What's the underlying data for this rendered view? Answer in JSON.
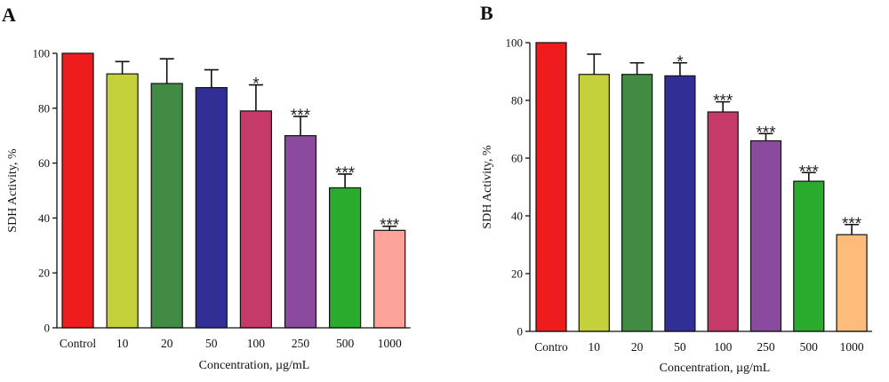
{
  "chart_data": [
    {
      "type": "bar",
      "panel": "A",
      "categories": [
        "Control",
        "10",
        "20",
        "50",
        "100",
        "250",
        "500",
        "1000"
      ],
      "values": [
        100,
        92.5,
        89,
        87.5,
        79,
        70,
        51,
        35.5
      ],
      "errors": [
        0,
        4.5,
        9,
        6.5,
        9.5,
        7,
        5,
        1.5
      ],
      "significance": [
        "",
        "",
        "",
        "",
        "*",
        "***",
        "***",
        "***"
      ],
      "colors": [
        "#ee1c1c",
        "#c4d13a",
        "#428b45",
        "#312e96",
        "#c53a69",
        "#8a4a9e",
        "#2aab2d",
        "#fea39a"
      ],
      "xlabel": "Concentration, µg/mL",
      "ylabel": "SDH Activity, %",
      "ylim": [
        0,
        100
      ],
      "yticks": [
        0,
        20,
        40,
        60,
        80,
        100
      ]
    },
    {
      "type": "bar",
      "panel": "B",
      "categories": [
        "Contro",
        "10",
        "20",
        "50",
        "100",
        "250",
        "500",
        "1000"
      ],
      "values": [
        100,
        89,
        89,
        88.5,
        76,
        66,
        52,
        33.5
      ],
      "errors": [
        0,
        7,
        4,
        4.5,
        3.5,
        2.5,
        3,
        3.5
      ],
      "significance": [
        "",
        "",
        "",
        "*",
        "***",
        "***",
        "***",
        "***"
      ],
      "colors": [
        "#ee1c1c",
        "#c4d13a",
        "#428b45",
        "#312e96",
        "#c53a69",
        "#8a4a9e",
        "#2aab2d",
        "#fdbc7a"
      ],
      "xlabel": "Concentration, µg/mL",
      "ylabel": "SDH Activity, %",
      "ylim": [
        0,
        100
      ],
      "yticks": [
        0,
        20,
        40,
        60,
        80,
        100
      ]
    }
  ]
}
